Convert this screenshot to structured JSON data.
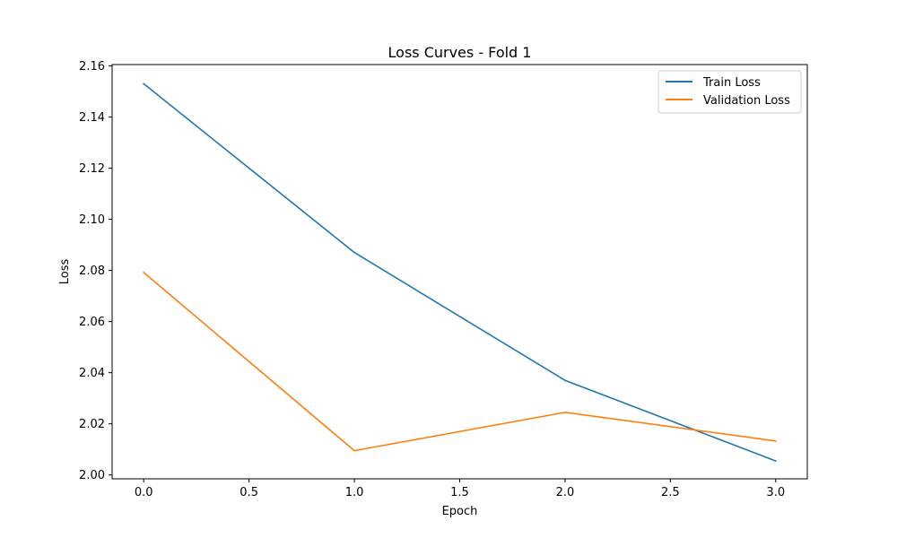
{
  "chart_data": {
    "type": "line",
    "title": "Loss Curves - Fold 1",
    "xlabel": "Epoch",
    "ylabel": "Loss",
    "xlim": [
      -0.15,
      3.15
    ],
    "ylim": [
      1.9985,
      2.1605
    ],
    "x_ticks": [
      0.0,
      0.5,
      1.0,
      1.5,
      2.0,
      2.5,
      3.0
    ],
    "x_tick_labels": [
      "0.0",
      "0.5",
      "1.0",
      "1.5",
      "2.0",
      "2.5",
      "3.0"
    ],
    "y_ticks": [
      2.0,
      2.02,
      2.04,
      2.06,
      2.08,
      2.1,
      2.12,
      2.14,
      2.16
    ],
    "y_tick_labels": [
      "2.00",
      "2.02",
      "2.04",
      "2.06",
      "2.08",
      "2.10",
      "2.12",
      "2.14",
      "2.16"
    ],
    "grid": false,
    "legend_position": "top-right",
    "x": [
      0,
      1,
      2,
      3
    ],
    "series": [
      {
        "name": "Train Loss",
        "color": "#1f77b4",
        "values": [
          2.153,
          2.087,
          2.037,
          2.0055
        ]
      },
      {
        "name": "Validation Loss",
        "color": "#ff7f0e",
        "values": [
          2.0792,
          2.0095,
          2.0245,
          2.0133
        ]
      }
    ]
  }
}
